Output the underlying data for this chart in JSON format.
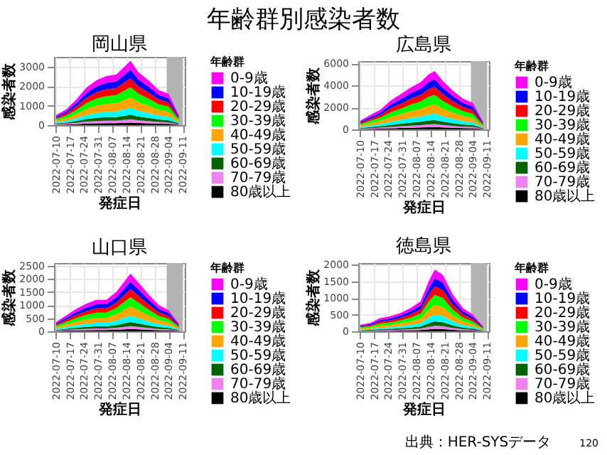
{
  "chart_data": [
    {
      "type": "area",
      "stacked": true,
      "title": "岡山県",
      "xlabel": "発症日",
      "ylabel": "感染者数",
      "legend_title": "年齢群",
      "legend": "right",
      "grid": true,
      "annotations": [
        "年齢群別感染者数"
      ],
      "x": [
        "2022-07-10",
        "2022-07-15",
        "2022-07-20",
        "2022-07-25",
        "2022-07-30",
        "2022-08-04",
        "2022-08-09",
        "2022-08-13",
        "2022-08-16",
        "2022-08-20",
        "2022-08-25",
        "2022-08-30",
        "2022-09-04",
        "2022-09-09"
      ],
      "xlim": [
        "2022-07-09",
        "2022-09-12"
      ],
      "xticks": [
        "2022-07-10",
        "2022-07-17",
        "2022-07-24",
        "2022-07-31",
        "2022-08-07",
        "2022-08-14",
        "2022-08-21",
        "2022-08-28",
        "2022-09-04",
        "2022-09-11"
      ],
      "ylim": [
        0,
        3500
      ],
      "yticks": [
        0,
        1000,
        2000,
        3000
      ],
      "bands": [
        {
          "axis": "x",
          "from": "2022-09-03",
          "to": "2022-09-11",
          "color": "#b3b3b3"
        }
      ],
      "series": [
        {
          "name": "80歳以上",
          "color": "#000000",
          "values": [
            20,
            30,
            50,
            80,
            90,
            100,
            100,
            120,
            130,
            110,
            90,
            70,
            60,
            20
          ]
        },
        {
          "name": "70-79歳",
          "color": "#ee82ee",
          "values": [
            30,
            40,
            70,
            100,
            120,
            130,
            130,
            150,
            170,
            140,
            120,
            90,
            80,
            30
          ]
        },
        {
          "name": "60-69歳",
          "color": "#006400",
          "values": [
            40,
            60,
            90,
            130,
            160,
            180,
            180,
            210,
            230,
            190,
            160,
            130,
            110,
            40
          ]
        },
        {
          "name": "50-59歳",
          "color": "#00ffff",
          "values": [
            60,
            90,
            140,
            210,
            250,
            280,
            290,
            330,
            360,
            300,
            250,
            200,
            180,
            60
          ]
        },
        {
          "name": "40-49歳",
          "color": "#ffa500",
          "values": [
            80,
            130,
            210,
            300,
            370,
            400,
            420,
            480,
            530,
            430,
            370,
            290,
            260,
            80
          ]
        },
        {
          "name": "30-39歳",
          "color": "#00ff00",
          "values": [
            80,
            130,
            210,
            300,
            370,
            400,
            420,
            480,
            530,
            430,
            370,
            290,
            260,
            80
          ]
        },
        {
          "name": "20-29歳",
          "color": "#ff0000",
          "values": [
            70,
            110,
            180,
            270,
            320,
            350,
            360,
            420,
            460,
            380,
            320,
            250,
            220,
            70
          ]
        },
        {
          "name": "10-19歳",
          "color": "#0000ff",
          "values": [
            70,
            100,
            170,
            250,
            300,
            330,
            340,
            390,
            430,
            350,
            300,
            230,
            210,
            70
          ]
        },
        {
          "name": "0-9歳",
          "color": "#ff00ff",
          "values": [
            70,
            110,
            180,
            270,
            320,
            350,
            360,
            420,
            460,
            380,
            320,
            250,
            220,
            70
          ]
        }
      ]
    },
    {
      "type": "area",
      "stacked": true,
      "title": "広島県",
      "xlabel": "発症日",
      "ylabel": "感染者数",
      "legend_title": "年齢群",
      "legend": "right",
      "grid": true,
      "x": [
        "2022-07-10",
        "2022-07-15",
        "2022-07-20",
        "2022-07-25",
        "2022-07-30",
        "2022-08-04",
        "2022-08-09",
        "2022-08-13",
        "2022-08-16",
        "2022-08-20",
        "2022-08-25",
        "2022-08-30",
        "2022-09-04",
        "2022-09-09"
      ],
      "xlim": [
        "2022-07-09",
        "2022-09-12"
      ],
      "xticks": [
        "2022-07-10",
        "2022-07-17",
        "2022-07-24",
        "2022-07-31",
        "2022-08-07",
        "2022-08-14",
        "2022-08-21",
        "2022-08-28",
        "2022-09-04",
        "2022-09-11"
      ],
      "ylim": [
        0,
        6200
      ],
      "yticks": [
        0,
        2000,
        4000,
        6000
      ],
      "bands": [
        {
          "axis": "x",
          "from": "2022-09-03",
          "to": "2022-09-11",
          "color": "#b3b3b3"
        }
      ],
      "series": [
        {
          "name": "80歳以上",
          "color": "#000000",
          "values": [
            30,
            50,
            70,
            100,
            130,
            150,
            170,
            200,
            210,
            180,
            140,
            110,
            100,
            30
          ]
        },
        {
          "name": "70-79歳",
          "color": "#ee82ee",
          "values": [
            40,
            70,
            90,
            130,
            160,
            190,
            220,
            250,
            270,
            220,
            180,
            140,
            120,
            40
          ]
        },
        {
          "name": "60-69歳",
          "color": "#006400",
          "values": [
            60,
            90,
            130,
            180,
            220,
            270,
            300,
            350,
            370,
            310,
            250,
            200,
            170,
            50
          ]
        },
        {
          "name": "50-59歳",
          "color": "#00ffff",
          "values": [
            90,
            140,
            200,
            290,
            350,
            420,
            470,
            550,
            580,
            480,
            390,
            310,
            260,
            80
          ]
        },
        {
          "name": "40-49歳",
          "color": "#ffa500",
          "values": [
            130,
            210,
            290,
            420,
            510,
            610,
            690,
            800,
            850,
            700,
            560,
            450,
            380,
            110
          ]
        },
        {
          "name": "30-39歳",
          "color": "#00ff00",
          "values": [
            130,
            210,
            290,
            420,
            510,
            610,
            690,
            800,
            850,
            700,
            560,
            450,
            380,
            110
          ]
        },
        {
          "name": "20-29歳",
          "color": "#ff0000",
          "values": [
            110,
            180,
            250,
            360,
            450,
            530,
            600,
            700,
            740,
            620,
            490,
            390,
            340,
            100
          ]
        },
        {
          "name": "10-19歳",
          "color": "#0000ff",
          "values": [
            100,
            170,
            230,
            340,
            420,
            490,
            560,
            650,
            690,
            570,
            460,
            360,
            310,
            90
          ]
        },
        {
          "name": "0-9歳",
          "color": "#ff00ff",
          "values": [
            110,
            180,
            250,
            360,
            450,
            530,
            600,
            700,
            740,
            620,
            490,
            390,
            340,
            100
          ]
        }
      ]
    },
    {
      "type": "area",
      "stacked": true,
      "title": "山口県",
      "xlabel": "発症日",
      "ylabel": "感染者数",
      "legend_title": "年齢群",
      "legend": "right",
      "grid": true,
      "x": [
        "2022-07-10",
        "2022-07-15",
        "2022-07-20",
        "2022-07-25",
        "2022-07-30",
        "2022-08-04",
        "2022-08-09",
        "2022-08-13",
        "2022-08-16",
        "2022-08-20",
        "2022-08-25",
        "2022-08-30",
        "2022-09-04",
        "2022-09-09"
      ],
      "xlim": [
        "2022-07-09",
        "2022-09-12"
      ],
      "xticks": [
        "2022-07-10",
        "2022-07-17",
        "2022-07-24",
        "2022-07-31",
        "2022-08-07",
        "2022-08-14",
        "2022-08-21",
        "2022-08-28",
        "2022-09-04",
        "2022-09-11"
      ],
      "ylim": [
        0,
        2600
      ],
      "yticks": [
        0,
        500,
        1000,
        1500,
        2000,
        2500
      ],
      "bands": [
        {
          "axis": "x",
          "from": "2022-09-03",
          "to": "2022-09-11",
          "color": "#b3b3b3"
        }
      ],
      "series": [
        {
          "name": "80歳以上",
          "color": "#000000",
          "values": [
            14,
            24,
            34,
            42,
            48,
            48,
            60,
            76,
            88,
            74,
            56,
            40,
            32,
            12
          ]
        },
        {
          "name": "70-79歳",
          "color": "#ee82ee",
          "values": [
            18,
            30,
            43,
            53,
            60,
            60,
            75,
            95,
            110,
            93,
            70,
            50,
            40,
            15
          ]
        },
        {
          "name": "60-69歳",
          "color": "#006400",
          "values": [
            25,
            42,
            60,
            74,
            84,
            84,
            105,
            133,
            154,
            130,
            98,
            70,
            56,
            21
          ]
        },
        {
          "name": "50-59歳",
          "color": "#00ffff",
          "values": [
            39,
            66,
            94,
            116,
            132,
            132,
            165,
            209,
            242,
            204,
            154,
            110,
            88,
            33
          ]
        },
        {
          "name": "40-49歳",
          "color": "#ffa500",
          "values": [
            56,
            96,
            136,
            168,
            192,
            192,
            240,
            304,
            352,
            296,
            224,
            160,
            128,
            48
          ]
        },
        {
          "name": "30-39歳",
          "color": "#00ff00",
          "values": [
            56,
            96,
            136,
            168,
            192,
            192,
            240,
            304,
            352,
            296,
            224,
            160,
            128,
            48
          ]
        },
        {
          "name": "20-29歳",
          "color": "#ff0000",
          "values": [
            49,
            84,
            119,
            147,
            168,
            168,
            210,
            266,
            308,
            259,
            196,
            140,
            112,
            42
          ]
        },
        {
          "name": "10-19歳",
          "color": "#0000ff",
          "values": [
            46,
            78,
            111,
            137,
            156,
            156,
            195,
            247,
            286,
            241,
            182,
            130,
            104,
            39
          ]
        },
        {
          "name": "0-9歳",
          "color": "#ff00ff",
          "values": [
            49,
            84,
            119,
            147,
            168,
            168,
            210,
            266,
            308,
            259,
            196,
            140,
            112,
            42
          ]
        }
      ]
    },
    {
      "type": "area",
      "stacked": true,
      "title": "徳島県",
      "xlabel": "発症日",
      "ylabel": "感染者数",
      "legend_title": "年齢群",
      "legend": "right",
      "grid": true,
      "annotations": [
        "出典：HER-SYSデータ",
        "120"
      ],
      "x": [
        "2022-07-10",
        "2022-07-15",
        "2022-07-20",
        "2022-07-25",
        "2022-07-30",
        "2022-08-04",
        "2022-08-09",
        "2022-08-13",
        "2022-08-16",
        "2022-08-20",
        "2022-08-25",
        "2022-08-30",
        "2022-09-04",
        "2022-09-09"
      ],
      "xlim": [
        "2022-07-09",
        "2022-09-12"
      ],
      "xticks": [
        "2022-07-10",
        "2022-07-17",
        "2022-07-24",
        "2022-07-31",
        "2022-08-07",
        "2022-08-14",
        "2022-08-21",
        "2022-08-28",
        "2022-09-04",
        "2022-09-11"
      ],
      "ylim": [
        0,
        2050
      ],
      "yticks": [
        0,
        500,
        1000,
        1500,
        2000
      ],
      "bands": [
        {
          "axis": "x",
          "from": "2022-09-03",
          "to": "2022-09-11",
          "color": "#b3b3b3"
        }
      ],
      "series": [
        {
          "name": "80歳以上",
          "color": "#000000",
          "values": [
            8,
            10,
            16,
            18,
            22,
            28,
            36,
            60,
            74,
            68,
            44,
            28,
            20,
            6
          ]
        },
        {
          "name": "70-79歳",
          "color": "#ee82ee",
          "values": [
            10,
            13,
            20,
            23,
            28,
            35,
            45,
            75,
            93,
            85,
            55,
            35,
            25,
            8
          ]
        },
        {
          "name": "60-69歳",
          "color": "#006400",
          "values": [
            14,
            18,
            28,
            32,
            39,
            49,
            63,
            105,
            130,
            119,
            77,
            49,
            35,
            11
          ]
        },
        {
          "name": "50-59歳",
          "color": "#00ffff",
          "values": [
            22,
            28,
            44,
            50,
            61,
            77,
            99,
            165,
            204,
            187,
            121,
            77,
            55,
            17
          ]
        },
        {
          "name": "40-49歳",
          "color": "#ffa500",
          "values": [
            32,
            40,
            64,
            72,
            88,
            112,
            144,
            240,
            296,
            272,
            176,
            112,
            80,
            24
          ]
        },
        {
          "name": "30-39歳",
          "color": "#00ff00",
          "values": [
            32,
            40,
            64,
            72,
            88,
            112,
            144,
            240,
            296,
            272,
            176,
            112,
            80,
            24
          ]
        },
        {
          "name": "20-29歳",
          "color": "#ff0000",
          "values": [
            28,
            35,
            56,
            63,
            77,
            98,
            126,
            210,
            259,
            238,
            154,
            98,
            70,
            21
          ]
        },
        {
          "name": "10-19歳",
          "color": "#0000ff",
          "values": [
            26,
            33,
            52,
            59,
            72,
            91,
            117,
            195,
            241,
            221,
            143,
            91,
            65,
            20
          ]
        },
        {
          "name": "0-9歳",
          "color": "#ff00ff",
          "values": [
            28,
            35,
            56,
            63,
            77,
            98,
            126,
            210,
            259,
            238,
            154,
            98,
            70,
            21
          ]
        }
      ]
    }
  ]
}
